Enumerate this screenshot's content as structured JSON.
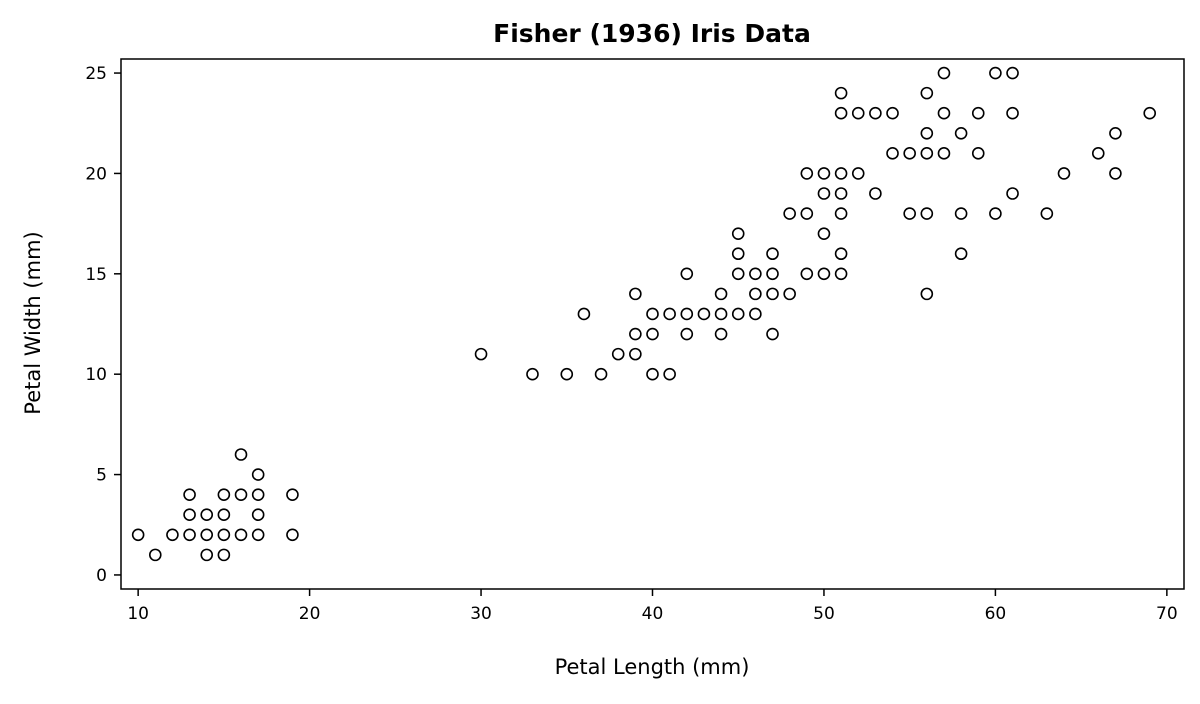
{
  "chart_data": {
    "type": "scatter",
    "title": "Fisher (1936) Iris Data",
    "xlabel": "Petal Length (mm)",
    "ylabel": "Petal Width (mm)",
    "xlim": [
      9,
      71
    ],
    "ylim": [
      -0.7,
      25.7
    ],
    "xticks": [
      10,
      20,
      30,
      40,
      50,
      60,
      70
    ],
    "yticks": [
      0,
      5,
      10,
      15,
      20,
      25
    ],
    "grid": false,
    "marker": "open-circle",
    "series": [
      {
        "points": [
          [
            10,
            2
          ],
          [
            11,
            1
          ],
          [
            12,
            2
          ],
          [
            13,
            2
          ],
          [
            13,
            3
          ],
          [
            13,
            4
          ],
          [
            14,
            1
          ],
          [
            14,
            2
          ],
          [
            14,
            3
          ],
          [
            15,
            1
          ],
          [
            15,
            2
          ],
          [
            15,
            3
          ],
          [
            15,
            4
          ],
          [
            16,
            2
          ],
          [
            16,
            4
          ],
          [
            16,
            6
          ],
          [
            17,
            2
          ],
          [
            17,
            3
          ],
          [
            17,
            4
          ],
          [
            17,
            5
          ],
          [
            19,
            2
          ],
          [
            19,
            4
          ],
          [
            30,
            11
          ],
          [
            33,
            10
          ],
          [
            35,
            10
          ],
          [
            36,
            13
          ],
          [
            37,
            10
          ],
          [
            38,
            11
          ],
          [
            39,
            11
          ],
          [
            39,
            12
          ],
          [
            39,
            14
          ],
          [
            40,
            10
          ],
          [
            40,
            12
          ],
          [
            40,
            13
          ],
          [
            41,
            10
          ],
          [
            41,
            13
          ],
          [
            42,
            12
          ],
          [
            42,
            13
          ],
          [
            42,
            15
          ],
          [
            43,
            13
          ],
          [
            44,
            12
          ],
          [
            44,
            13
          ],
          [
            44,
            14
          ],
          [
            45,
            13
          ],
          [
            45,
            15
          ],
          [
            45,
            16
          ],
          [
            45,
            17
          ],
          [
            46,
            13
          ],
          [
            46,
            14
          ],
          [
            46,
            15
          ],
          [
            47,
            12
          ],
          [
            47,
            14
          ],
          [
            47,
            15
          ],
          [
            47,
            16
          ],
          [
            48,
            14
          ],
          [
            48,
            18
          ],
          [
            49,
            15
          ],
          [
            49,
            18
          ],
          [
            49,
            20
          ],
          [
            50,
            15
          ],
          [
            50,
            17
          ],
          [
            50,
            19
          ],
          [
            50,
            20
          ],
          [
            51,
            15
          ],
          [
            51,
            16
          ],
          [
            51,
            18
          ],
          [
            51,
            19
          ],
          [
            51,
            20
          ],
          [
            51,
            23
          ],
          [
            51,
            24
          ],
          [
            52,
            20
          ],
          [
            52,
            23
          ],
          [
            53,
            19
          ],
          [
            53,
            23
          ],
          [
            54,
            21
          ],
          [
            54,
            23
          ],
          [
            55,
            18
          ],
          [
            55,
            21
          ],
          [
            56,
            14
          ],
          [
            56,
            18
          ],
          [
            56,
            21
          ],
          [
            56,
            22
          ],
          [
            56,
            24
          ],
          [
            57,
            21
          ],
          [
            57,
            23
          ],
          [
            57,
            25
          ],
          [
            58,
            16
          ],
          [
            58,
            18
          ],
          [
            58,
            22
          ],
          [
            59,
            21
          ],
          [
            59,
            23
          ],
          [
            60,
            18
          ],
          [
            60,
            25
          ],
          [
            61,
            19
          ],
          [
            61,
            23
          ],
          [
            61,
            25
          ],
          [
            63,
            18
          ],
          [
            64,
            20
          ],
          [
            66,
            21
          ],
          [
            67,
            20
          ],
          [
            67,
            22
          ],
          [
            69,
            23
          ]
        ]
      }
    ]
  }
}
